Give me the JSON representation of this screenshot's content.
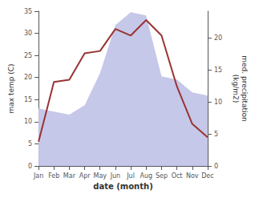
{
  "chart_data": {
    "type": "line",
    "categories": [
      "Jan",
      "Feb",
      "Mar",
      "Apr",
      "May",
      "Jun",
      "Jul",
      "Aug",
      "Sep",
      "Oct",
      "Nov",
      "Dec"
    ],
    "xlabel": "date (month)",
    "ylabel": "max temp (C)",
    "y2label": "med. precipitation\n(kg/m2)",
    "series": [
      {
        "type": "area",
        "axis": "y2",
        "color": "#c5c8e8",
        "values": [
          9.0,
          8.5,
          8.0,
          9.5,
          14.5,
          22.0,
          24.0,
          23.5,
          14.0,
          13.5,
          11.5,
          11.0
        ]
      },
      {
        "type": "line",
        "color": "#993333",
        "values": [
          5.5,
          19.0,
          19.5,
          25.5,
          26.0,
          31.0,
          29.5,
          33.0,
          29.5,
          18.0,
          9.5,
          6.5
        ]
      }
    ],
    "ylim": [
      0,
      35
    ],
    "yticks": [
      0,
      5,
      10,
      15,
      20,
      25,
      30,
      35
    ],
    "y2lim": [
      0,
      24.17
    ],
    "y2ticks": [
      0,
      5,
      10,
      15,
      20
    ],
    "grid": false
  }
}
